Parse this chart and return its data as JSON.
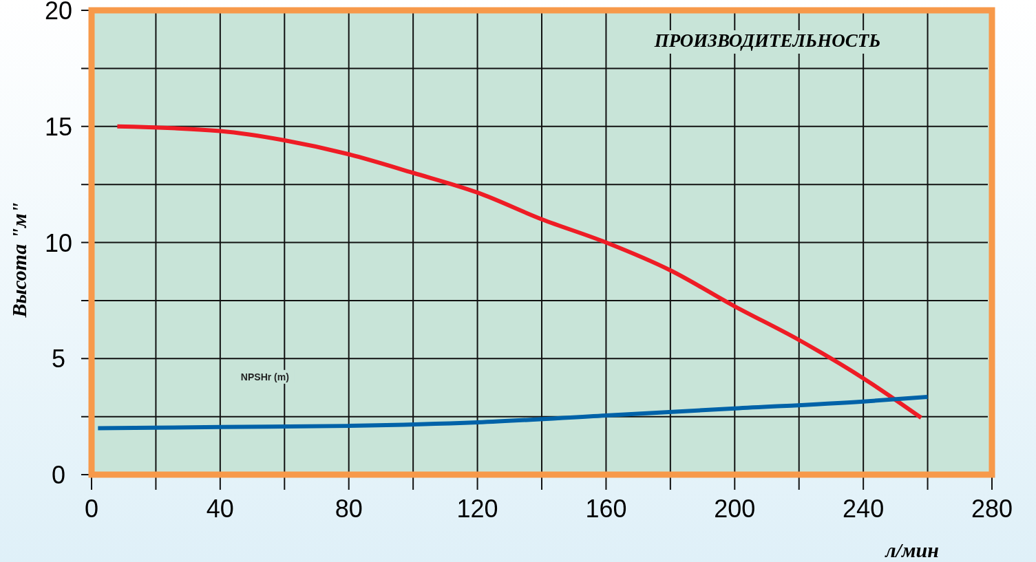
{
  "chart_data": {
    "type": "line",
    "title": "ПРОИЗВОДИТЕЛЬНОСТЬ",
    "xlabel": "л/мин",
    "ylabel": "Высота \"м\"",
    "xlim": [
      0,
      280
    ],
    "ylim": [
      0,
      20
    ],
    "xticks": [
      0,
      {
        "value": 20,
        "label": null
      },
      40,
      {
        "value": 60,
        "label": null
      },
      80,
      {
        "value": 100,
        "label": null
      },
      120,
      {
        "value": 140,
        "label": null
      },
      160,
      {
        "value": 180,
        "label": null
      },
      200,
      {
        "value": 220,
        "label": null
      },
      240,
      {
        "value": 260,
        "label": null
      },
      280
    ],
    "yticks": [
      0,
      {
        "value": 2.5,
        "label": null
      },
      5,
      {
        "value": 7.5,
        "label": null
      },
      10,
      {
        "value": 12.5,
        "label": null
      },
      15,
      {
        "value": 17.5,
        "label": null
      },
      20
    ],
    "grid": true,
    "series": [
      {
        "color": "#ee1c25",
        "x": [
          8,
          40,
          60,
          80,
          100,
          120,
          140,
          160,
          180,
          200,
          220,
          240,
          258
        ],
        "values": [
          15,
          14.8,
          14.4,
          13.8,
          13,
          12.15,
          11,
          10,
          8.8,
          7.25,
          5.8,
          4.15,
          2.45
        ]
      },
      {
        "name": "NPSHr (m)",
        "color": "#0062a8",
        "x": [
          2,
          40,
          80,
          120,
          160,
          200,
          240,
          260
        ],
        "values": [
          2,
          2.05,
          2.1,
          2.25,
          2.55,
          2.85,
          3.15,
          3.35
        ]
      }
    ]
  }
}
